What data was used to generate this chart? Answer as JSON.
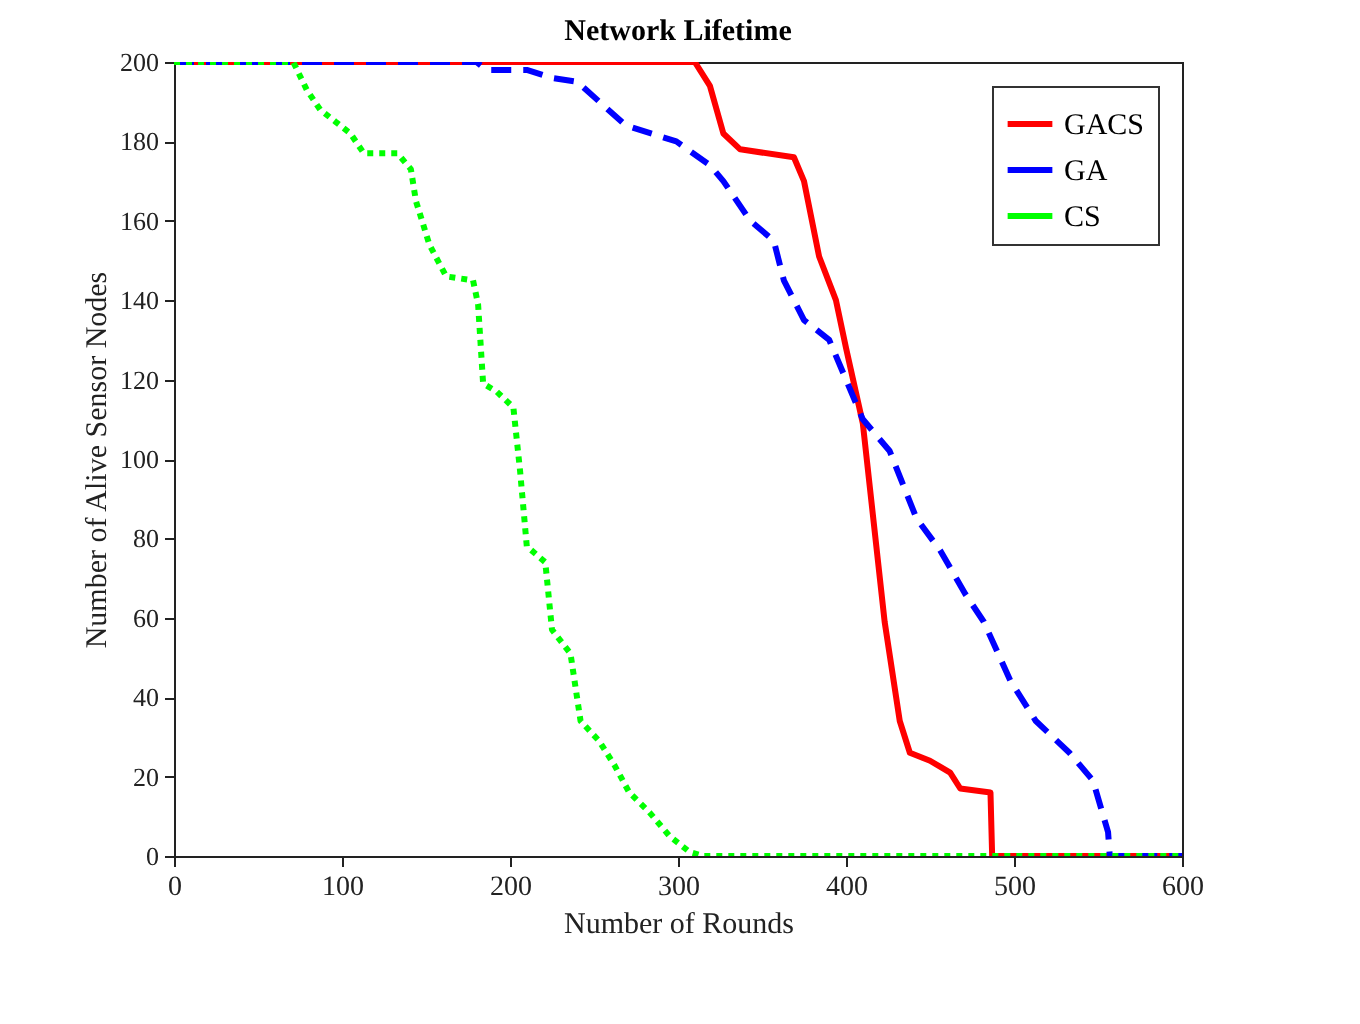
{
  "chart_data": {
    "type": "line",
    "title": "Network Lifetime",
    "xlabel": "Number of Rounds",
    "ylabel": "Number of Alive Sensor Nodes",
    "xlim": [
      0,
      600
    ],
    "ylim": [
      0,
      200
    ],
    "xticks": [
      0,
      100,
      200,
      300,
      400,
      500,
      600
    ],
    "yticks": [
      0,
      20,
      40,
      60,
      80,
      100,
      120,
      140,
      160,
      180,
      200
    ],
    "grid": false,
    "legend": "top right",
    "series": [
      {
        "name": "GACS",
        "color": "#ff0000",
        "line_style": "solid",
        "x": [
          0,
          310,
          319,
          327,
          337,
          369,
          375,
          384,
          394,
          400,
          410,
          423,
          432,
          438,
          450,
          462,
          468,
          486,
          487,
          600
        ],
        "values": [
          200,
          200,
          194,
          182,
          178,
          176,
          170,
          151,
          140,
          128,
          109,
          59,
          34,
          26,
          24,
          21,
          17,
          16,
          0,
          0
        ]
      },
      {
        "name": "GA",
        "color": "#0000ff",
        "line_style": "dashed",
        "x": [
          0,
          180,
          186,
          210,
          225,
          240,
          269,
          299,
          319,
          327,
          343,
          357,
          363,
          375,
          390,
          410,
          426,
          442,
          456,
          471,
          482,
          498,
          513,
          533,
          547,
          556,
          557,
          600
        ],
        "values": [
          200,
          200,
          198,
          198,
          196,
          195,
          184,
          180,
          174,
          170,
          160,
          155,
          145,
          135,
          130,
          110,
          102,
          85,
          77,
          66,
          59,
          44,
          34,
          26,
          19,
          6,
          0,
          0
        ]
      },
      {
        "name": "CS",
        "color": "#00ff00",
        "line_style": "dotted",
        "x": [
          0,
          71,
          79,
          87,
          96,
          105,
          113,
          133,
          141,
          144,
          152,
          162,
          178,
          181,
          184,
          192,
          202,
          206,
          210,
          221,
          225,
          236,
          242,
          253,
          262,
          271,
          283,
          295,
          307,
          315,
          600
        ],
        "values": [
          200,
          200,
          193,
          188,
          185,
          182,
          177,
          177,
          173,
          165,
          154,
          146,
          145,
          139,
          119,
          117,
          113,
          97,
          78,
          74,
          57,
          51,
          34,
          29,
          23,
          16,
          11,
          5,
          1,
          0,
          0
        ]
      }
    ]
  }
}
